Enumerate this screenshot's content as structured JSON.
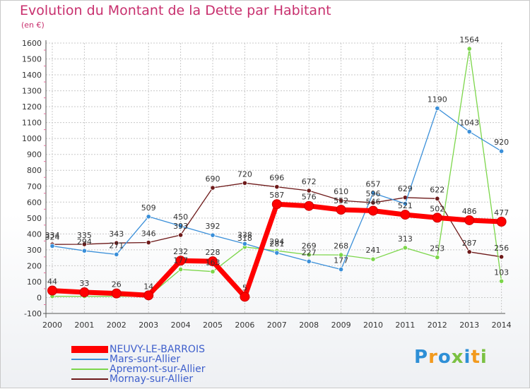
{
  "title": "Evolution du Montant de la Dette par Habitant",
  "unit": "(en €)",
  "logo": {
    "text": "Proxiti",
    "colors": [
      "#2e8fd6",
      "#f29a1e",
      "#2e8fd6",
      "#7bc142",
      "#2e8fd6",
      "#f29a1e",
      "#7bc142"
    ]
  },
  "chart_data": {
    "type": "line",
    "x": [
      "2000",
      "2001",
      "2002",
      "2003",
      "2004",
      "2005",
      "2006",
      "2007",
      "2008",
      "2009",
      "2010",
      "2011",
      "2012",
      "2013",
      "2014"
    ],
    "ylim": [
      -100,
      1600
    ],
    "yticks": [
      "-100",
      "0",
      "100",
      "200",
      "300",
      "400",
      "500",
      "600",
      "700",
      "800",
      "900",
      "1000",
      "1100",
      "1200",
      "1300",
      "1400",
      "1500",
      "1600"
    ],
    "grid": true,
    "legend": "bottom-left",
    "series": [
      {
        "name": "NEUVY-LE-BARROIS",
        "color": "#ff0000",
        "values": [
          44,
          33,
          26,
          14,
          232,
          228,
          5,
          587,
          576,
          552,
          546,
          521,
          502,
          486,
          477
        ],
        "labels": [
          "44",
          "33",
          "26",
          "14",
          "232",
          "228",
          "5",
          "587",
          "576",
          "552",
          "546",
          "521",
          "502",
          "486",
          "477"
        ]
      },
      {
        "name": "Mars-sur-Allier",
        "color": "#3a8fd9",
        "values": [
          324,
          294,
          271,
          509,
          450,
          392,
          338,
          281,
          227,
          177,
          657,
          590,
          1190,
          1043,
          920
        ],
        "labels": [
          "324",
          "294",
          "271",
          "509",
          "450",
          "392",
          "338",
          "281",
          "227",
          "177",
          "657",
          "",
          "1190",
          "1043",
          "920"
        ]
      },
      {
        "name": "Apremont-sur-Allier",
        "color": "#7cd64a",
        "values": [
          8,
          8,
          8,
          8,
          177,
          163,
          318,
          294,
          269,
          268,
          241,
          313,
          253,
          1564,
          103
        ],
        "labels": [
          "",
          "",
          "",
          "",
          "177",
          "163",
          "318",
          "294",
          "269",
          "268",
          "241",
          "313",
          "253",
          "1564",
          "103"
        ]
      },
      {
        "name": "Mornay-sur-Allier",
        "color": "#6e1a1a",
        "values": [
          334,
          335,
          343,
          346,
          393,
          690,
          720,
          696,
          672,
          610,
          596,
          629,
          622,
          287,
          256
        ],
        "labels": [
          "334",
          "335",
          "343",
          "346",
          "393",
          "690",
          "720",
          "696",
          "672",
          "610",
          "596",
          "629",
          "622",
          "287",
          "256"
        ]
      }
    ]
  }
}
